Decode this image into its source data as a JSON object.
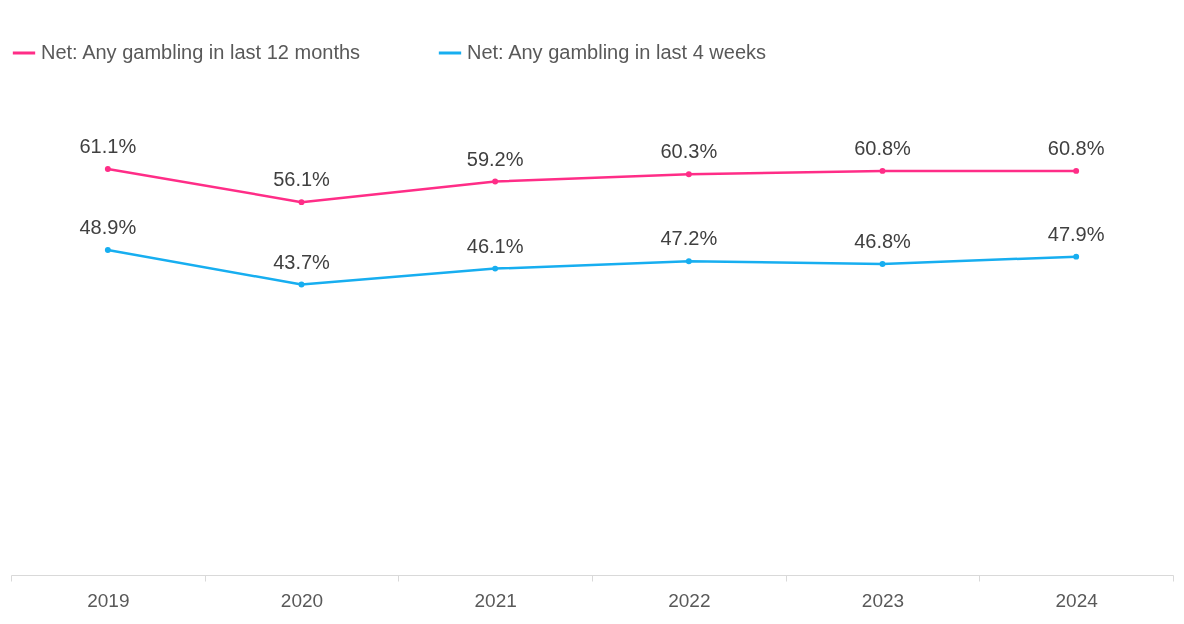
{
  "chart_data": {
    "type": "line",
    "categories": [
      "2019",
      "2020",
      "2021",
      "2022",
      "2023",
      "2024"
    ],
    "series": [
      {
        "name": "Net: Any gambling in last 12 months",
        "color": "#ff2d87",
        "values": [
          61.1,
          56.1,
          59.2,
          60.3,
          60.8,
          60.8
        ],
        "value_labels": [
          "61.1%",
          "56.1%",
          "59.2%",
          "60.3%",
          "60.8%",
          "60.8%"
        ]
      },
      {
        "name": "Net: Any gambling in last 4 weeks",
        "color": "#17aef0",
        "values": [
          48.9,
          43.7,
          46.1,
          47.2,
          46.8,
          47.9
        ],
        "value_labels": [
          "48.9%",
          "43.7%",
          "46.1%",
          "47.2%",
          "46.8%",
          "47.9%"
        ]
      }
    ],
    "legend": "top",
    "grid": false,
    "marker": "circle",
    "line_style": "solid"
  }
}
